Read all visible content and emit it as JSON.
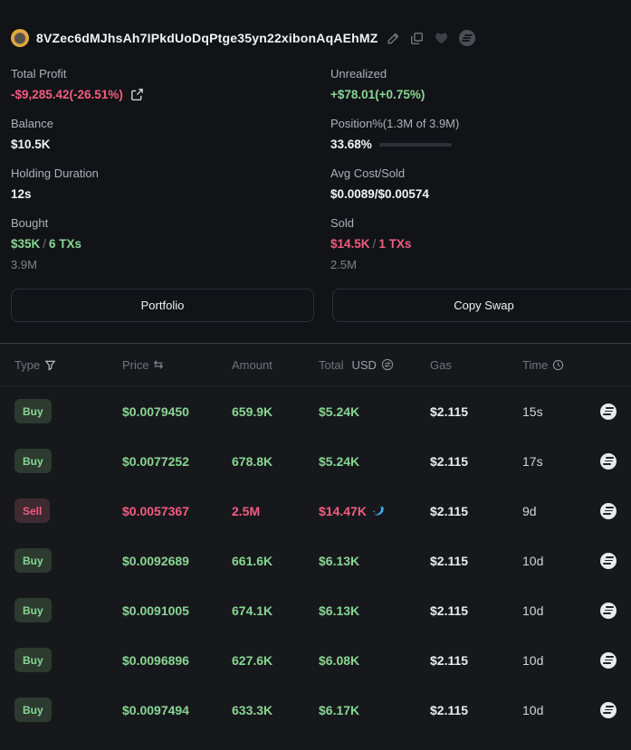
{
  "wallet": {
    "address": "8VZec6dMJhsAh7IPkdUoDqPtge35yn22xibonAqAEhMZ"
  },
  "stats": {
    "total_profit": {
      "label": "Total Profit",
      "value": "-$9,285.42(-26.51%)"
    },
    "unrealized": {
      "label": "Unrealized",
      "value": "+$78.01(+0.75%)"
    },
    "balance": {
      "label": "Balance",
      "value": "$10.5K"
    },
    "position": {
      "label": "Position%(1.3M of 3.9M)",
      "value": "33.68%",
      "percent": 33.68
    },
    "holding_duration": {
      "label": "Holding Duration",
      "value": "12s"
    },
    "avg_cost_sold": {
      "label": "Avg Cost/Sold",
      "value": "$0.0089/$0.00574"
    },
    "bought": {
      "label": "Bought",
      "amount": "$35K",
      "sep": "/",
      "txs": "6 TXs",
      "tokens": "3.9M"
    },
    "sold": {
      "label": "Sold",
      "amount": "$14.5K",
      "sep": "/",
      "txs": "1 TXs",
      "tokens": "2.5M"
    }
  },
  "actions": {
    "portfolio": "Portfolio",
    "copy_swap": "Copy Swap"
  },
  "table": {
    "headers": {
      "type": "Type",
      "price": "Price",
      "amount": "Amount",
      "total": "Total",
      "total_unit": "USD",
      "gas": "Gas",
      "time": "Time"
    },
    "rows": [
      {
        "type": "Buy",
        "price": "$0.0079450",
        "amount": "659.9K",
        "total": "$5.24K",
        "gas": "$2.115",
        "time": "15s"
      },
      {
        "type": "Buy",
        "price": "$0.0077252",
        "amount": "678.8K",
        "total": "$5.24K",
        "gas": "$2.115",
        "time": "17s"
      },
      {
        "type": "Sell",
        "price": "$0.0057367",
        "amount": "2.5M",
        "total": "$14.47K",
        "gas": "$2.115",
        "time": "9d",
        "total_icon": "dolphin"
      },
      {
        "type": "Buy",
        "price": "$0.0092689",
        "amount": "661.6K",
        "total": "$6.13K",
        "gas": "$2.115",
        "time": "10d"
      },
      {
        "type": "Buy",
        "price": "$0.0091005",
        "amount": "674.1K",
        "total": "$6.13K",
        "gas": "$2.115",
        "time": "10d"
      },
      {
        "type": "Buy",
        "price": "$0.0096896",
        "amount": "627.6K",
        "total": "$6.08K",
        "gas": "$2.115",
        "time": "10d"
      },
      {
        "type": "Buy",
        "price": "$0.0097494",
        "amount": "633.3K",
        "total": "$6.17K",
        "gas": "$2.115",
        "time": "10d"
      }
    ]
  },
  "icons": {
    "price_swap": "⇆"
  },
  "colors": {
    "buy_green": "#88d693",
    "sell_pink": "#f25c82",
    "dolphin_blue": "#3db1f5",
    "top_bg": "#121317",
    "table_bg": "#17181c"
  }
}
